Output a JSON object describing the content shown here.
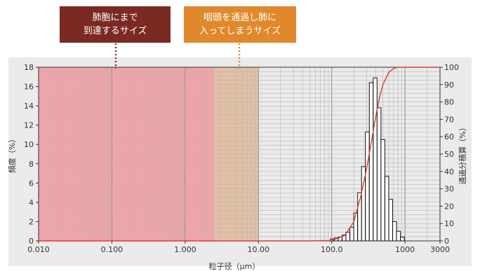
{
  "annotations": {
    "lung": {
      "line1": "肺胞にまで",
      "line2": "到達するサイズ",
      "color": "#7a2a22"
    },
    "throat": {
      "line1": "咽頭を通過し肺に",
      "line2": "入ってしまうサイズ",
      "color": "#e0892c"
    }
  },
  "chart_data": {
    "type": "bar",
    "x_scale": "log",
    "xlim": [
      0.01,
      3000
    ],
    "xlabel": "粒子径（μm）",
    "x_ticks": [
      {
        "value": 0.01,
        "label": "0.010"
      },
      {
        "value": 0.1,
        "label": "0.100"
      },
      {
        "value": 1,
        "label": "1.000"
      },
      {
        "value": 10,
        "label": "10.00"
      },
      {
        "value": 100,
        "label": "100.0"
      },
      {
        "value": 1000,
        "label": "1000"
      },
      {
        "value": 3000,
        "label": "3000"
      }
    ],
    "ylabel_left": "頻度（%）",
    "ylim_left": [
      0,
      18
    ],
    "y_ticks_left": [
      "0",
      "2",
      "4",
      "6",
      "8",
      "10",
      "12",
      "14",
      "16",
      "18"
    ],
    "ylabel_right": "通過分積算（%）",
    "ylim_right": [
      0,
      100
    ],
    "y_ticks_right": [
      "0",
      "10",
      "20",
      "30",
      "40",
      "50",
      "60",
      "70",
      "80",
      "90",
      "100"
    ],
    "grid": true,
    "regions": [
      {
        "from": 0.01,
        "to": 2.5,
        "color": "#f0a3a8",
        "annotation": "lung"
      },
      {
        "from": 2.5,
        "to": 10,
        "color": "#e3c0a3",
        "annotation": "throat"
      }
    ],
    "histogram": {
      "axis": "left",
      "bins": [
        {
          "x": 102,
          "value": 0.2
        },
        {
          "x": 115,
          "value": 0.3
        },
        {
          "x": 130,
          "value": 0.4
        },
        {
          "x": 147,
          "value": 0.6
        },
        {
          "x": 166,
          "value": 0.9
        },
        {
          "x": 188,
          "value": 1.4
        },
        {
          "x": 212,
          "value": 2.9
        },
        {
          "x": 240,
          "value": 5.0
        },
        {
          "x": 271,
          "value": 7.7
        },
        {
          "x": 306,
          "value": 11.3
        },
        {
          "x": 346,
          "value": 16.4
        },
        {
          "x": 391,
          "value": 16.9
        },
        {
          "x": 442,
          "value": 13.8
        },
        {
          "x": 499,
          "value": 10.5
        },
        {
          "x": 564,
          "value": 6.7
        },
        {
          "x": 637,
          "value": 4.3
        },
        {
          "x": 720,
          "value": 2.0
        },
        {
          "x": 814,
          "value": 1.0
        },
        {
          "x": 920,
          "value": 0.4
        }
      ]
    },
    "cumulative": {
      "axis": "right",
      "color": "#e03a3a",
      "x": [
        0.01,
        50,
        100,
        150,
        200,
        250,
        300,
        350,
        400,
        450,
        500,
        600,
        700,
        800,
        1000,
        3000
      ],
      "y": [
        0,
        0,
        0.3,
        3,
        11,
        26,
        42,
        58,
        72,
        83,
        90,
        97,
        99.3,
        100,
        100,
        100
      ]
    }
  }
}
